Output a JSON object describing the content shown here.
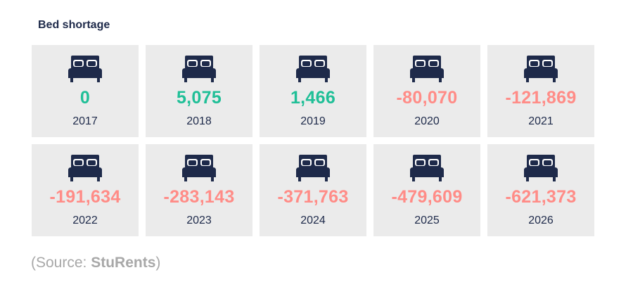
{
  "title": "Bed shortage",
  "source": {
    "prefix": "(Source: ",
    "name": "StuRents",
    "suffix": ")"
  },
  "colors": {
    "positive": "#1fbf97",
    "negative": "#ff8c87",
    "bed": "#1e2a4a",
    "card": "#ebebeb"
  },
  "icon": "bed-icon",
  "chart_data": {
    "type": "table",
    "title": "Bed shortage",
    "categories": [
      "2017",
      "2018",
      "2019",
      "2020",
      "2021",
      "2022",
      "2023",
      "2024",
      "2025",
      "2026"
    ],
    "values": [
      0,
      5075,
      1466,
      -80070,
      -121869,
      -191634,
      -283143,
      -371763,
      -479609,
      -621373
    ],
    "labels": [
      "0",
      "5,075",
      "1,466",
      "-80,070",
      "-121,869",
      "-191,634",
      "-283,143",
      "-371,763",
      "-479,609",
      "-621,373"
    ]
  }
}
